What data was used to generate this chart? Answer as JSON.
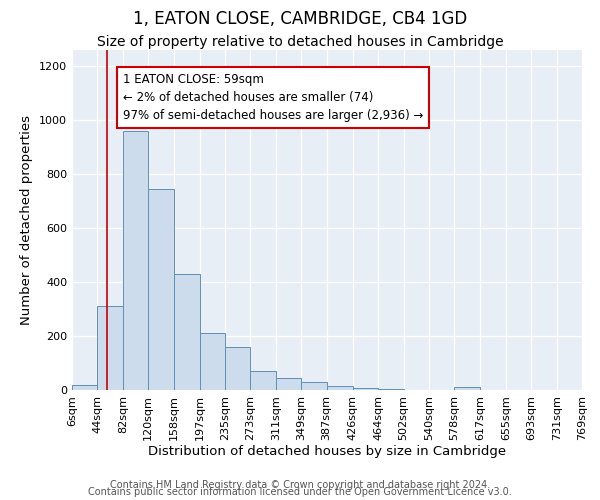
{
  "title": "1, EATON CLOSE, CAMBRIDGE, CB4 1GD",
  "subtitle": "Size of property relative to detached houses in Cambridge",
  "xlabel": "Distribution of detached houses by size in Cambridge",
  "ylabel": "Number of detached properties",
  "bar_values": [
    20,
    310,
    960,
    745,
    430,
    210,
    160,
    70,
    45,
    28,
    15,
    8,
    3,
    0,
    0,
    10,
    0,
    0,
    0,
    0
  ],
  "bin_edges": [
    6,
    44,
    82,
    120,
    158,
    197,
    235,
    273,
    311,
    349,
    387,
    426,
    464,
    502,
    540,
    578,
    617,
    655,
    693,
    731,
    769
  ],
  "bin_labels": [
    "6sqm",
    "44sqm",
    "82sqm",
    "120sqm",
    "158sqm",
    "197sqm",
    "235sqm",
    "273sqm",
    "311sqm",
    "349sqm",
    "387sqm",
    "426sqm",
    "464sqm",
    "502sqm",
    "540sqm",
    "578sqm",
    "617sqm",
    "655sqm",
    "693sqm",
    "731sqm",
    "769sqm"
  ],
  "bar_color": "#ccdcec",
  "bar_edge_color": "#6090b8",
  "vline_x": 59,
  "vline_color": "#cc0000",
  "annotation_text": "1 EATON CLOSE: 59sqm\n← 2% of detached houses are smaller (74)\n97% of semi-detached houses are larger (2,936) →",
  "annotation_box_edge_color": "#cc0000",
  "annotation_box_face_color": "white",
  "ylim": [
    0,
    1260
  ],
  "yticks": [
    0,
    200,
    400,
    600,
    800,
    1000,
    1200
  ],
  "footer1": "Contains HM Land Registry data © Crown copyright and database right 2024.",
  "footer2": "Contains public sector information licensed under the Open Government Licence v3.0.",
  "title_fontsize": 12,
  "subtitle_fontsize": 10,
  "label_fontsize": 9.5,
  "tick_fontsize": 8,
  "annotation_fontsize": 8.5,
  "footer_fontsize": 7,
  "fig_bg_color": "#ffffff",
  "ax_bg_color": "#e8eef5"
}
